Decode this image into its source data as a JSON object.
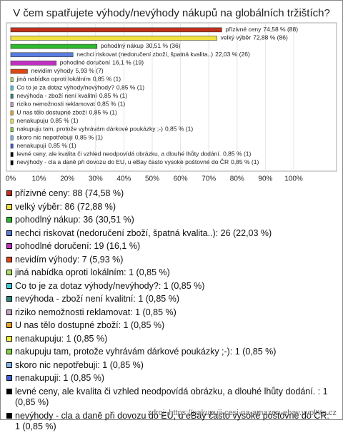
{
  "chart_data": {
    "type": "bar",
    "orientation": "horizontal",
    "title": "V čem spatřujete výhody/nevýhody nákupů na globálních tržištích?",
    "categories": [
      "přízivné ceny",
      "velký výběr",
      "pohodlný nákup",
      "nechci riskovat (nedoručení zboží, špatná kvalita..)",
      "pohodlné doručení",
      "nevidím výhody",
      "jiná nabídka oproti lokálním",
      "Co to je za dotaz výhody/nevýhody?",
      "nevýhoda - zboží není kvalitní",
      "riziko nemožnosti reklamovat",
      "U nas tělo dostupné zboží",
      "nenakupuju",
      "nakupuju tam, protože vyhrávám dárkové poukázky ;-)",
      "skoro nic nepotřebuji",
      "nenakupuji",
      "levné ceny, ale kvalita či vzhled neodpovídá obrázku, a dlouhé lhůty dodání.",
      "nevýhody - cla a daně při dovozu do EU, u eBay často vysoké poštovné do ČR"
    ],
    "values": [
      74.58,
      72.88,
      30.51,
      22.03,
      16.1,
      5.93,
      0.85,
      0.85,
      0.85,
      0.85,
      0.85,
      0.85,
      0.85,
      0.85,
      0.85,
      0.85,
      0.85
    ],
    "value_labels": [
      "74,58 % (88)",
      "72,88 % (86)",
      "30,51 % (36)",
      "22,03 % (26)",
      "16,1 % (19)",
      "5,93 % (7)",
      "0,85 % (1)",
      "0,85 % (1)",
      "0,85 % (1)",
      "0,85 % (1)",
      "0,85 % (1)",
      "0,85 % (1)",
      "0,85 % (1)",
      "0,85 % (1)",
      "0,85 % (1)",
      "0,85 % (1)",
      "0,85 % (1)"
    ],
    "legend_labels": [
      "přízivné ceny: 88 (74,58 %)",
      "velký výběr: 86 (72,88 %)",
      "pohodlný nákup: 36 (30,51 %)",
      "nechci riskovat (nedoručení zboží, špatná kvalita..): 26 (22,03 %)",
      "pohodlné doručení: 19 (16,1 %)",
      "nevidím výhody: 7 (5,93 %)",
      "jiná nabídka oproti lokálním: 1 (0,85 %)",
      "Co to je za dotaz výhody/nevýhody?: 1 (0,85 %)",
      "nevýhoda - zboží není kvalitní: 1 (0,85 %)",
      "riziko nemožnosti reklamovat: 1 (0,85 %)",
      "U nas tělo dostupné zboží: 1 (0,85 %)",
      "nenakupuju: 1 (0,85 %)",
      "nakupuju tam, protože vyhrávám dárkové poukázky ;-): 1 (0,85 %)",
      "skoro nic nepotřebuji: 1 (0,85 %)",
      "nenakupuji: 1 (0,85 %)",
      "levné ceny, ale kvalita či vzhled neodpovídá obrázku, a dlouhé lhůty dodání. : 1 (0,85 %)",
      "nevýhody - cla a daně při dovozu do EU, u eBay často vysoké poštovné do ČR: 1 (0,85 %)"
    ],
    "colors": [
      "#c0301c",
      "#f0e040",
      "#2eb82e",
      "#5a7de0",
      "#c030c0",
      "#e04818",
      "#a8e060",
      "#40c8d8",
      "#2a8a80",
      "#c8a0c0",
      "#f0a020",
      "#f0f040",
      "#80d040",
      "#80b0f0",
      "#4060d0",
      "#000000",
      "#000000"
    ],
    "xlim": [
      0,
      100
    ],
    "xticks": [
      {
        "value": 0,
        "label": "0%"
      },
      {
        "value": 10,
        "label": "10%"
      },
      {
        "value": 20,
        "label": "20%"
      },
      {
        "value": 30,
        "label": "30%"
      },
      {
        "value": 40,
        "label": "40%"
      },
      {
        "value": 50,
        "label": "50%"
      },
      {
        "value": 60,
        "label": "60%"
      },
      {
        "value": 70,
        "label": "70%"
      },
      {
        "value": 80,
        "label": "80%"
      },
      {
        "value": 90,
        "label": "90%"
      },
      {
        "value": 100,
        "label": "100%"
      }
    ],
    "grid": true,
    "source": "zdroj: https://nakupuji-cesi-na-amazon-ebay.vyplnto.cz"
  }
}
